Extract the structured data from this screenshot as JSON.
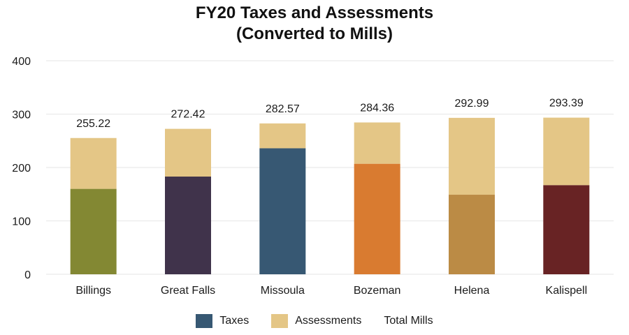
{
  "chart_data": {
    "type": "bar",
    "stacked": true,
    "title_line1": "FY20 Taxes and Assessments",
    "title_line2": "(Converted to Mills)",
    "xlabel": "",
    "ylabel": "",
    "ylim": [
      0,
      400
    ],
    "yticks": [
      0,
      100,
      200,
      300,
      400
    ],
    "grid": true,
    "legend_position": "bottom",
    "categories": [
      "Billings",
      "Great Falls",
      "Missoula",
      "Bozeman",
      "Helena",
      "Kalispell"
    ],
    "series": [
      {
        "name": "Taxes",
        "values": [
          160,
          183,
          236,
          207,
          149,
          167
        ],
        "bar_colors": [
          "#838833",
          "#40334b",
          "#375873",
          "#d97b30",
          "#bb8b45",
          "#682324"
        ],
        "legend_color": "#375873"
      },
      {
        "name": "Assessments",
        "values": [
          95.22,
          89.42,
          46.57,
          77.36,
          143.99,
          126.39
        ],
        "bar_colors": [
          "#e4c686",
          "#e4c686",
          "#e4c686",
          "#e4c686",
          "#e4c686",
          "#e4c686"
        ],
        "legend_color": "#e4c686"
      }
    ],
    "totals": {
      "name": "Total Mills",
      "values": [
        255.22,
        272.42,
        282.57,
        284.36,
        292.99,
        293.39
      ],
      "labels": [
        "255.22",
        "272.42",
        "282.57",
        "284.36",
        "292.99",
        "293.39"
      ]
    },
    "legend": [
      "Taxes",
      "Assessments",
      "Total Mills"
    ],
    "colors": {
      "grid": "#e6e6e6",
      "text": "#1a1a1a"
    }
  }
}
